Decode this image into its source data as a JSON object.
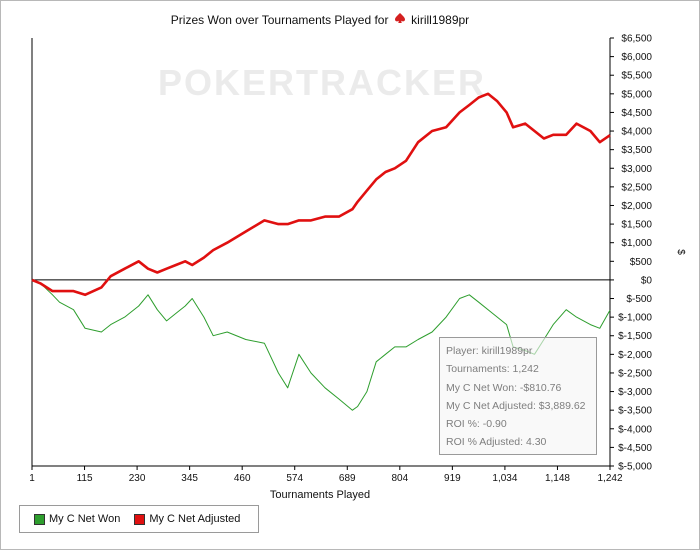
{
  "title": {
    "prefix": "Prizes Won over Tournaments Played for",
    "player": "kirill1989pr"
  },
  "watermark": "POKERTRACKER",
  "colors": {
    "won": "#2e9e2e",
    "adjusted": "#e01010",
    "axis": "#000000"
  },
  "tooltip": {
    "player": "Player: kirill1989pr",
    "tournaments": "Tournaments: 1,242",
    "net_won": "My C Net Won: -$810.76",
    "net_adjusted": "My C Net Adjusted: $3,889.62",
    "roi": "ROI %: -0.90",
    "roi_adjusted": "ROI % Adjusted: 4.30"
  },
  "legend": [
    {
      "label": "My C Net Won",
      "color": "#2e9e2e"
    },
    {
      "label": "My C Net Adjusted",
      "color": "#e01010"
    }
  ],
  "chart_data": {
    "type": "line",
    "xlabel": "Tournaments Played",
    "ylabel": "$",
    "xlim": [
      1,
      1242
    ],
    "ylim": [
      -5000,
      6500
    ],
    "x_ticks": [
      "1",
      "115",
      "230",
      "345",
      "460",
      "574",
      "689",
      "804",
      "919",
      "1,034",
      "1,148",
      "1,242"
    ],
    "y_ticks": [
      "$6,500",
      "$6,000",
      "$5,500",
      "$5,000",
      "$4,500",
      "$4,000",
      "$3,500",
      "$3,000",
      "$2,500",
      "$2,000",
      "$1,500",
      "$1,000",
      "$500",
      "$0",
      "$-500",
      "$-1,000",
      "$-1,500",
      "$-2,000",
      "$-2,500",
      "$-3,000",
      "$-3,500",
      "$-4,000",
      "$-4,500",
      "$-5,000"
    ],
    "series": [
      {
        "name": "My C Net Won",
        "x": [
          1,
          20,
          45,
          60,
          90,
          115,
          150,
          170,
          200,
          230,
          250,
          270,
          290,
          310,
          330,
          345,
          370,
          390,
          420,
          460,
          500,
          530,
          550,
          574,
          600,
          630,
          660,
          689,
          700,
          720,
          740,
          760,
          780,
          804,
          830,
          860,
          890,
          919,
          940,
          960,
          990,
          1020,
          1034,
          1060,
          1080,
          1100,
          1120,
          1148,
          1170,
          1200,
          1220,
          1242
        ],
        "values": [
          0,
          -100,
          -400,
          -600,
          -800,
          -1300,
          -1400,
          -1200,
          -1000,
          -700,
          -400,
          -800,
          -1100,
          -900,
          -700,
          -500,
          -1000,
          -1500,
          -1400,
          -1600,
          -1700,
          -2500,
          -2900,
          -2000,
          -2500,
          -2900,
          -3200,
          -3500,
          -3400,
          -3000,
          -2200,
          -2000,
          -1800,
          -1800,
          -1600,
          -1400,
          -1000,
          -500,
          -400,
          -600,
          -900,
          -1200,
          -1800,
          -1900,
          -2000,
          -1600,
          -1200,
          -800,
          -1000,
          -1200,
          -1300,
          -810.76
        ]
      },
      {
        "name": "My C Net Adjusted",
        "x": [
          1,
          20,
          45,
          60,
          90,
          115,
          150,
          170,
          200,
          230,
          250,
          270,
          290,
          310,
          330,
          345,
          370,
          390,
          420,
          460,
          500,
          530,
          550,
          574,
          600,
          630,
          660,
          689,
          700,
          720,
          740,
          760,
          780,
          804,
          830,
          860,
          890,
          919,
          940,
          960,
          980,
          1000,
          1020,
          1034,
          1060,
          1080,
          1100,
          1120,
          1148,
          1170,
          1200,
          1220,
          1242
        ],
        "values": [
          0,
          -100,
          -300,
          -300,
          -300,
          -400,
          -200,
          100,
          300,
          500,
          300,
          200,
          300,
          400,
          500,
          400,
          600,
          800,
          1000,
          1300,
          1600,
          1500,
          1500,
          1600,
          1600,
          1700,
          1700,
          1900,
          2100,
          2400,
          2700,
          2900,
          3000,
          3200,
          3700,
          4000,
          4100,
          4500,
          4700,
          4900,
          5000,
          4800,
          4500,
          4100,
          4200,
          4000,
          3800,
          3900,
          3900,
          4200,
          4000,
          3700,
          3889.62
        ]
      }
    ],
    "grid": false,
    "legend_position": "bottom-left"
  }
}
